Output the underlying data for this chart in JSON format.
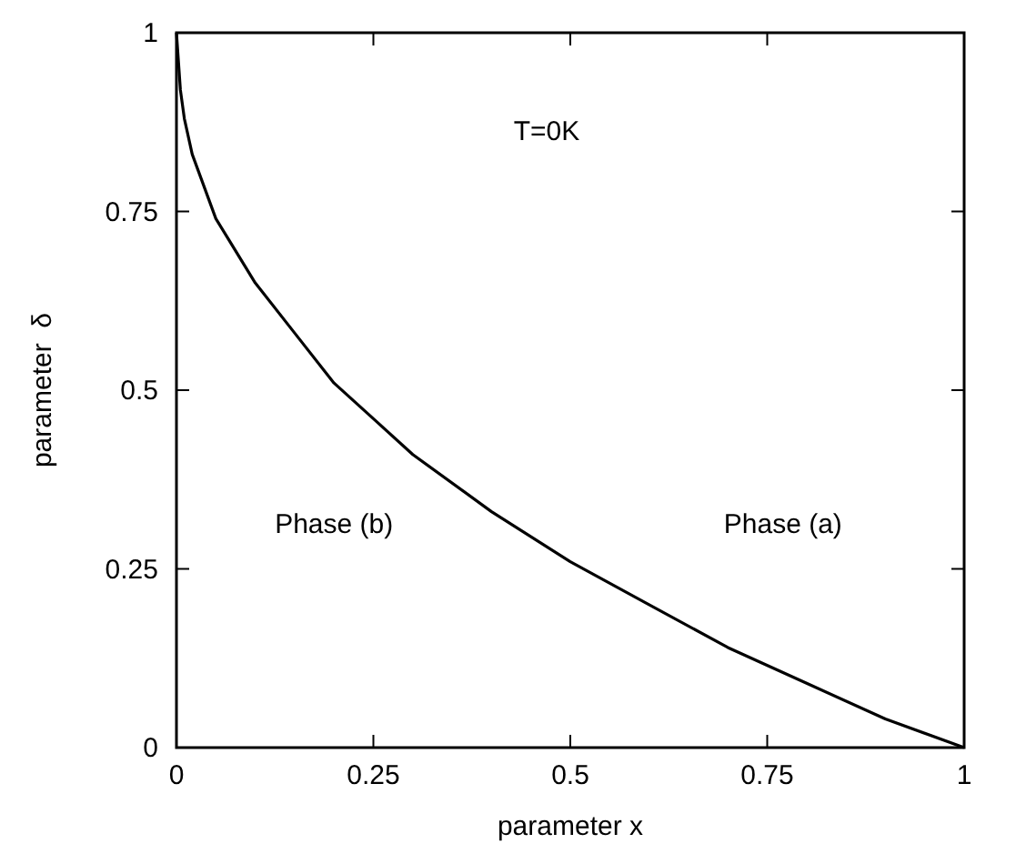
{
  "chart_data": {
    "type": "line",
    "xlabel": "parameter x",
    "ylabel": "parameter  δ",
    "x": [
      0,
      0.005,
      0.01,
      0.02,
      0.05,
      0.1,
      0.15,
      0.2,
      0.25,
      0.3,
      0.4,
      0.5,
      0.6,
      0.7,
      0.8,
      0.9,
      1
    ],
    "series": [
      {
        "color": "#000000",
        "values": [
          1,
          0.92,
          0.88,
          0.83,
          0.74,
          0.65,
          0.58,
          0.51,
          0.46,
          0.41,
          0.33,
          0.26,
          0.2,
          0.14,
          0.09,
          0.04,
          0
        ]
      }
    ],
    "xlim": [
      0,
      1
    ],
    "ylim": [
      0,
      1
    ],
    "xticks": [
      0,
      0.25,
      0.5,
      0.75,
      1
    ],
    "yticks": [
      0,
      0.25,
      0.5,
      0.75,
      1
    ],
    "annotations": [
      "T=0K",
      "Phase (b)",
      "Phase (a)"
    ],
    "grid": false,
    "marker": "none",
    "line_style": "solid"
  }
}
